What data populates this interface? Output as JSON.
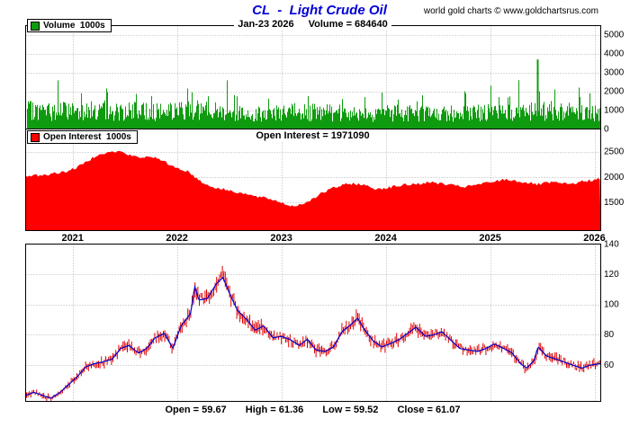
{
  "header": {
    "title": "CL  -  Light Crude Oil",
    "watermark": "world gold charts © www.goldchartsrus.com"
  },
  "legends": {
    "volume": "Volume  1000s",
    "open_interest": "Open Interest  1000s"
  },
  "info_bar": {
    "date": "Jan-23 2026",
    "volume_text": "Volume = 684640"
  },
  "oi_info": "Open Interest = 1971090",
  "footer": {
    "open": "Open = 59.67",
    "high": "High = 61.36",
    "low": "Low = 59.52",
    "close": "Close = 61.07"
  },
  "x_axis": {
    "range": [
      2020.55,
      2026.06
    ],
    "ticks": [
      2021,
      2022,
      2023,
      2024,
      2025,
      2026
    ],
    "tick_labels": [
      "2021",
      "2022",
      "2023",
      "2024",
      "2025",
      "2026"
    ]
  },
  "chart_data": [
    {
      "name": "volume",
      "type": "bar",
      "title": "Volume 1000s",
      "color": "#0f9b0f",
      "ylim": [
        0,
        5500
      ],
      "yticks": [
        0,
        1000,
        2000,
        3000,
        4000,
        5000
      ],
      "last_volume": 684640,
      "base_x": [
        2020.55,
        2020.8,
        2021.0,
        2021.2,
        2021.4,
        2021.6,
        2021.8,
        2022.0,
        2022.1,
        2022.2,
        2022.35,
        2022.5,
        2022.7,
        2022.9,
        2023.1,
        2023.3,
        2023.5,
        2023.7,
        2023.9,
        2024.1,
        2024.3,
        2024.5,
        2024.7,
        2024.9,
        2025.1,
        2025.3,
        2025.5,
        2025.7,
        2025.9,
        2026.06
      ],
      "base_values": [
        1000,
        950,
        1050,
        980,
        940,
        970,
        930,
        980,
        1100,
        1060,
        980,
        890,
        820,
        840,
        920,
        900,
        870,
        890,
        840,
        880,
        860,
        830,
        860,
        870,
        900,
        940,
        960,
        990,
        940,
        850
      ],
      "spikes": [
        [
          2021.08,
          1900
        ],
        [
          2021.75,
          1750
        ],
        [
          2022.1,
          2150
        ],
        [
          2022.14,
          1950
        ],
        [
          2022.55,
          1800
        ],
        [
          2023.25,
          1750
        ],
        [
          2023.8,
          1700
        ],
        [
          2024.35,
          1800
        ],
        [
          2024.75,
          2000
        ],
        [
          2025.0,
          2300
        ],
        [
          2025.27,
          2600
        ],
        [
          2025.45,
          3700
        ],
        [
          2025.47,
          2000
        ],
        [
          2025.62,
          2100
        ],
        [
          2025.85,
          2200
        ],
        [
          2025.95,
          1900
        ]
      ]
    },
    {
      "name": "open_interest",
      "type": "area",
      "title": "Open Interest 1000s",
      "color": "#ff0000",
      "ylim": [
        950,
        2950
      ],
      "yticks": [
        1500,
        2000,
        2500
      ],
      "last_value": 1971090,
      "x": [
        2020.55,
        2020.75,
        2020.95,
        2021.05,
        2021.15,
        2021.25,
        2021.35,
        2021.45,
        2021.55,
        2021.65,
        2021.75,
        2021.9,
        2022.0,
        2022.1,
        2022.2,
        2022.3,
        2022.45,
        2022.6,
        2022.75,
        2022.9,
        2023.0,
        2023.1,
        2023.2,
        2023.3,
        2023.4,
        2023.5,
        2023.6,
        2023.7,
        2023.8,
        2023.9,
        2024.0,
        2024.15,
        2024.3,
        2024.45,
        2024.6,
        2024.75,
        2024.9,
        2025.05,
        2025.15,
        2025.3,
        2025.45,
        2025.6,
        2025.75,
        2025.9,
        2026.06
      ],
      "values": [
        2020,
        2050,
        2120,
        2200,
        2330,
        2460,
        2490,
        2510,
        2430,
        2380,
        2420,
        2280,
        2180,
        2120,
        1960,
        1830,
        1760,
        1700,
        1620,
        1570,
        1500,
        1430,
        1470,
        1580,
        1700,
        1790,
        1850,
        1880,
        1840,
        1770,
        1790,
        1840,
        1870,
        1900,
        1850,
        1810,
        1860,
        1920,
        1960,
        1910,
        1860,
        1900,
        1860,
        1920,
        1971
      ]
    },
    {
      "name": "price",
      "type": "line",
      "title": "CL - Light Crude Oil price",
      "line_color": "#0000cc",
      "bar_color": "#dd0000",
      "ylim": [
        36,
        140
      ],
      "yticks": [
        60,
        80,
        100,
        120,
        140
      ],
      "last": {
        "open": 59.67,
        "high": 61.36,
        "low": 59.52,
        "close": 61.07
      },
      "x": [
        2020.55,
        2020.63,
        2020.71,
        2020.79,
        2020.88,
        2020.96,
        2021.04,
        2021.13,
        2021.21,
        2021.29,
        2021.38,
        2021.46,
        2021.54,
        2021.63,
        2021.71,
        2021.79,
        2021.88,
        2021.96,
        2022.04,
        2022.13,
        2022.17,
        2022.21,
        2022.29,
        2022.38,
        2022.44,
        2022.5,
        2022.58,
        2022.67,
        2022.75,
        2022.83,
        2022.92,
        2023.0,
        2023.08,
        2023.17,
        2023.25,
        2023.33,
        2023.42,
        2023.5,
        2023.58,
        2023.67,
        2023.73,
        2023.79,
        2023.88,
        2023.96,
        2024.04,
        2024.13,
        2024.21,
        2024.29,
        2024.38,
        2024.46,
        2024.54,
        2024.63,
        2024.71,
        2024.79,
        2024.88,
        2024.96,
        2025.04,
        2025.13,
        2025.21,
        2025.29,
        2025.35,
        2025.42,
        2025.46,
        2025.54,
        2025.63,
        2025.71,
        2025.79,
        2025.88,
        2025.96,
        2026.06
      ],
      "values": [
        40,
        42,
        40,
        38,
        42,
        47,
        52,
        59,
        61,
        62,
        64,
        71,
        73,
        68,
        71,
        78,
        81,
        71,
        86,
        94,
        112,
        103,
        104,
        114,
        118,
        108,
        96,
        90,
        83,
        86,
        78,
        79,
        77,
        73,
        77,
        70,
        69,
        72,
        82,
        87,
        91,
        84,
        76,
        72,
        74,
        77,
        81,
        85,
        79,
        80,
        82,
        76,
        71,
        70,
        69,
        71,
        74,
        71,
        68,
        61,
        58,
        63,
        72,
        66,
        64,
        62,
        60,
        58,
        60,
        61
      ]
    }
  ]
}
